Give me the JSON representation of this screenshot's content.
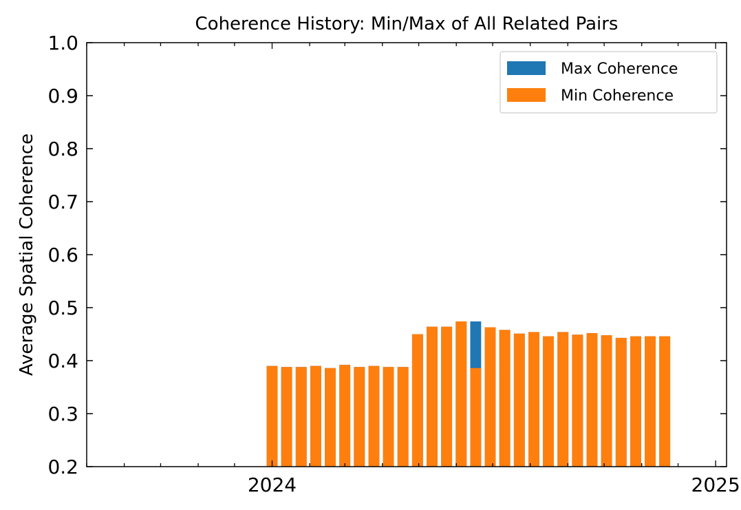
{
  "chart_data": {
    "type": "bar",
    "title": "Coherence History: Min/Max of All Related Pairs",
    "xlabel": "",
    "ylabel": "Average Spatial Coherence",
    "ylim": [
      0.2,
      1.0
    ],
    "xlim": [
      "2023-08-01",
      "2025-01-10"
    ],
    "yticks": [
      0.2,
      0.3,
      0.4,
      0.5,
      0.6,
      0.7,
      0.8,
      0.9,
      1.0
    ],
    "ytick_labels": [
      "0.2",
      "0.3",
      "0.4",
      "0.5",
      "0.6",
      "0.7",
      "0.8",
      "0.9",
      "1.0"
    ],
    "xticks_major": [
      "2024-01-01",
      "2025-01-01"
    ],
    "xtick_labels": [
      "2024",
      "2025"
    ],
    "legend_position": "top-right",
    "grid": false,
    "series": [
      {
        "name": "Max Coherence",
        "color": "#1f77b4",
        "x": [
          "2024-01-01",
          "2024-01-13",
          "2024-01-25",
          "2024-02-06",
          "2024-02-18",
          "2024-03-01",
          "2024-03-13",
          "2024-03-25",
          "2024-04-06",
          "2024-04-18",
          "2024-04-30",
          "2024-05-12",
          "2024-05-24",
          "2024-06-05",
          "2024-06-17",
          "2024-06-29",
          "2024-07-11",
          "2024-07-23",
          "2024-08-04",
          "2024-08-16",
          "2024-08-28",
          "2024-09-09",
          "2024-09-21",
          "2024-10-03",
          "2024-10-15",
          "2024-10-27",
          "2024-11-08",
          "2024-11-20"
        ],
        "values": [
          0.39,
          0.388,
          0.388,
          0.39,
          0.386,
          0.392,
          0.388,
          0.39,
          0.388,
          0.388,
          0.45,
          0.464,
          0.464,
          0.474,
          0.474,
          0.463,
          0.458,
          0.451,
          0.454,
          0.446,
          0.454,
          0.449,
          0.452,
          0.448,
          0.443,
          0.446,
          0.446,
          0.446
        ]
      },
      {
        "name": "Min Coherence",
        "color": "#ff7f0e",
        "x": [
          "2024-01-01",
          "2024-01-13",
          "2024-01-25",
          "2024-02-06",
          "2024-02-18",
          "2024-03-01",
          "2024-03-13",
          "2024-03-25",
          "2024-04-06",
          "2024-04-18",
          "2024-04-30",
          "2024-05-12",
          "2024-05-24",
          "2024-06-05",
          "2024-06-17",
          "2024-06-29",
          "2024-07-11",
          "2024-07-23",
          "2024-08-04",
          "2024-08-16",
          "2024-08-28",
          "2024-09-09",
          "2024-09-21",
          "2024-10-03",
          "2024-10-15",
          "2024-10-27",
          "2024-11-08",
          "2024-11-20"
        ],
        "values": [
          0.39,
          0.388,
          0.388,
          0.39,
          0.386,
          0.392,
          0.388,
          0.39,
          0.388,
          0.388,
          0.45,
          0.464,
          0.464,
          0.474,
          0.386,
          0.463,
          0.458,
          0.451,
          0.454,
          0.446,
          0.454,
          0.449,
          0.452,
          0.448,
          0.443,
          0.446,
          0.446,
          0.446
        ]
      }
    ]
  }
}
